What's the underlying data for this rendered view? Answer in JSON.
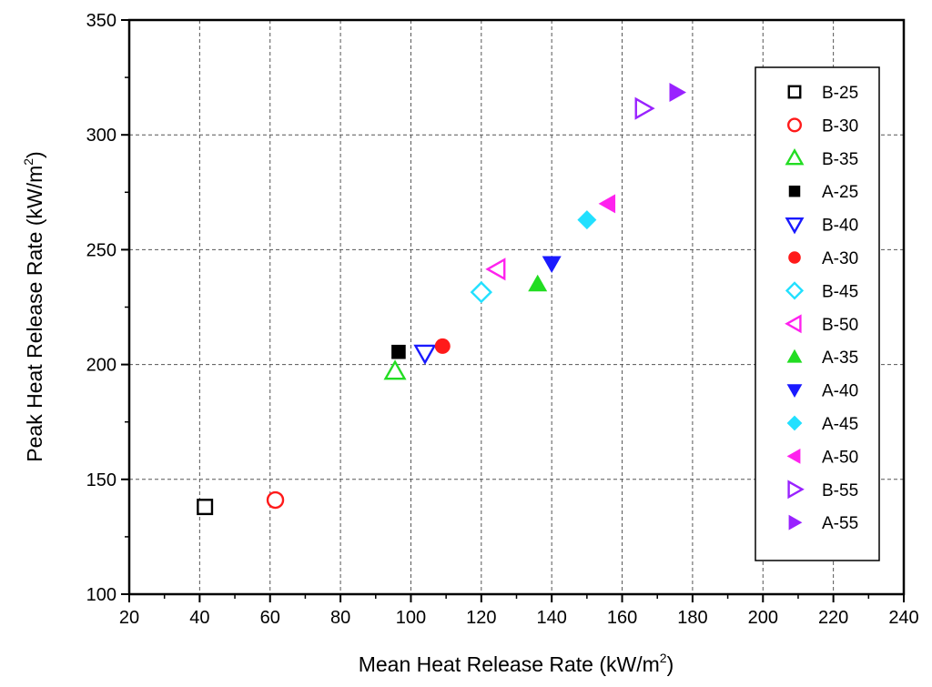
{
  "chart_data": {
    "type": "scatter",
    "title": "",
    "xlabel": "Mean Heat Release Rate (kW/m",
    "xlabel_sup": "2",
    "xlabel_end": ")",
    "ylabel": "Peak Heat Release Rate (kW/m",
    "ylabel_sup": "2",
    "ylabel_end": ")",
    "xlim": [
      20,
      240
    ],
    "ylim": [
      100,
      350
    ],
    "x_ticks": [
      20,
      40,
      60,
      80,
      100,
      120,
      140,
      160,
      180,
      200,
      220,
      240
    ],
    "y_ticks": [
      100,
      150,
      200,
      250,
      300,
      350
    ],
    "grid": true,
    "legend_position": "right",
    "series": [
      {
        "name": "B-25",
        "marker": "square",
        "filled": false,
        "color": "#000000",
        "x": [
          41.5
        ],
        "y": [
          138
        ]
      },
      {
        "name": "B-30",
        "marker": "circle",
        "filled": false,
        "color": "#ff1a1a",
        "x": [
          61.5
        ],
        "y": [
          141
        ]
      },
      {
        "name": "B-35",
        "marker": "triangle-up",
        "filled": false,
        "color": "#22dd22",
        "x": [
          95.5
        ],
        "y": [
          197
        ]
      },
      {
        "name": "A-25",
        "marker": "square",
        "filled": true,
        "color": "#000000",
        "x": [
          96.5
        ],
        "y": [
          205.5
        ]
      },
      {
        "name": "B-40",
        "marker": "triangle-down",
        "filled": false,
        "color": "#1a1aff",
        "x": [
          104
        ],
        "y": [
          205
        ]
      },
      {
        "name": "A-30",
        "marker": "circle",
        "filled": true,
        "color": "#ff1a1a",
        "x": [
          109
        ],
        "y": [
          208
        ]
      },
      {
        "name": "B-45",
        "marker": "diamond",
        "filled": false,
        "color": "#22e0ff",
        "x": [
          120
        ],
        "y": [
          231.5
        ]
      },
      {
        "name": "B-50",
        "marker": "triangle-left",
        "filled": false,
        "color": "#ff22ee",
        "x": [
          124.5
        ],
        "y": [
          241.5
        ]
      },
      {
        "name": "A-35",
        "marker": "triangle-up",
        "filled": true,
        "color": "#22dd22",
        "x": [
          136
        ],
        "y": [
          235
        ]
      },
      {
        "name": "A-40",
        "marker": "triangle-down",
        "filled": true,
        "color": "#1a1aff",
        "x": [
          140
        ],
        "y": [
          244
        ]
      },
      {
        "name": "A-45",
        "marker": "diamond",
        "filled": true,
        "color": "#22e0ff",
        "x": [
          150
        ],
        "y": [
          263
        ]
      },
      {
        "name": "A-50",
        "marker": "triangle-left",
        "filled": true,
        "color": "#ff22ee",
        "x": [
          156
        ],
        "y": [
          270
        ]
      },
      {
        "name": "B-55",
        "marker": "triangle-right",
        "filled": false,
        "color": "#9922ff",
        "x": [
          166
        ],
        "y": [
          311.5
        ]
      },
      {
        "name": "A-55",
        "marker": "triangle-right",
        "filled": true,
        "color": "#9922ff",
        "x": [
          175.5
        ],
        "y": [
          318.5
        ]
      }
    ]
  }
}
